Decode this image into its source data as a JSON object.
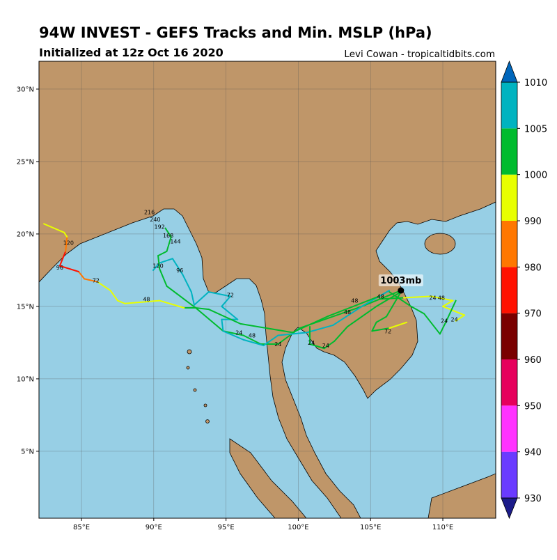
{
  "title": "94W INVEST - GEFS Tracks and Min. MSLP (hPa)",
  "subtitle": "Initialized at 12z Oct 16 2020",
  "credit": "Levi Cowan - tropicaltidbits.com",
  "map": {
    "lonlim": [
      82.06,
      113.66
    ],
    "latlim": [
      0.38,
      31.92
    ],
    "grid": true,
    "xticks": [
      {
        "value": 85,
        "label": "85°E"
      },
      {
        "value": 90,
        "label": "90°E"
      },
      {
        "value": 95,
        "label": "95°E"
      },
      {
        "value": 100,
        "label": "100°E"
      },
      {
        "value": 105,
        "label": "105°E"
      },
      {
        "value": 110,
        "label": "110°E"
      }
    ],
    "yticks": [
      {
        "value": 5,
        "label": "5°N"
      },
      {
        "value": 10,
        "label": "10°N"
      },
      {
        "value": 15,
        "label": "15°N"
      },
      {
        "value": 20,
        "label": "20°N"
      },
      {
        "value": 25,
        "label": "25°N"
      },
      {
        "value": 30,
        "label": "30°N"
      }
    ]
  },
  "colorbar": {
    "ticks": [
      930,
      940,
      950,
      960,
      970,
      980,
      990,
      1000,
      1005,
      1010
    ],
    "colors": [
      "#6a3bff",
      "#ff33ff",
      "#e6005c",
      "#7a0000",
      "#ff1100",
      "#ff7700",
      "#e8ff00",
      "#00bb2e",
      "#00b3c0"
    ],
    "under": "#1c1c8a",
    "over": "#0066bb"
  },
  "storm": {
    "lon": 107.1,
    "lat": 16.1,
    "label": "1003mb"
  },
  "tracks": [
    {
      "lon": [
        107.1,
        104.4,
        100.1,
        98.6,
        97.4,
        96.2,
        94.8,
        92.9,
        92.1,
        90.4,
        88.0,
        87.5,
        87.0,
        86.1,
        85.2,
        84.8,
        83.5,
        83.9,
        84.0,
        83.8,
        82.4
      ],
      "lat": [
        16.1,
        15.0,
        13.5,
        12.4,
        12.4,
        13.0,
        13.3,
        14.9,
        14.9,
        15.4,
        15.2,
        15.4,
        16.1,
        16.7,
        16.9,
        17.4,
        17.8,
        18.8,
        19.8,
        20.1,
        20.7
      ],
      "mslp": [
        1003,
        1002,
        1001,
        1001,
        1001,
        1002,
        1002,
        1001,
        998,
        997,
        996,
        996,
        994,
        988,
        985,
        978,
        976,
        985,
        993,
        996,
        997
      ]
    },
    {
      "lon": [
        106.3,
        104.4,
        102.4,
        100.6,
        98.6,
        97.6,
        96.2,
        94.8,
        94.7,
        95.8,
        94.7,
        95.3,
        93.8,
        92.8,
        92.6,
        92.0,
        91.3,
        90.4,
        89.96
      ],
      "lat": [
        16.1,
        15.0,
        13.7,
        13.2,
        13.0,
        12.3,
        12.7,
        13.3,
        14.1,
        14.1,
        15.0,
        15.7,
        16.0,
        15.1,
        16.0,
        17.2,
        18.3,
        18.0,
        17.5
      ],
      "mslp": [
        1006,
        1006,
        1007,
        1007,
        1007,
        1007,
        1007,
        1007,
        1007,
        1007,
        1007,
        1007,
        1007,
        1007,
        1007,
        1007,
        1007,
        1007,
        1007
      ]
    },
    {
      "lon": [
        105.6,
        102.0,
        99.6,
        96.0,
        93.8,
        92.9,
        92.1,
        90.9,
        90.4,
        90.3,
        90.9,
        91.2,
        90.8
      ],
      "lat": [
        15.7,
        14.3,
        13.2,
        13.8,
        14.8,
        14.9,
        15.5,
        16.4,
        17.6,
        18.5,
        18.8,
        19.8,
        20.4
      ],
      "mslp": [
        1003,
        1002,
        1002,
        1001,
        1001,
        1002,
        1003,
        1004,
        1004,
        1004,
        1004,
        1003,
        1004
      ]
    },
    {
      "lon": [
        105.6,
        107.3,
        109.2,
        110.7,
        110.0,
        111.5,
        110.9
      ],
      "lat": [
        15.5,
        15.6,
        15.7,
        15.4,
        15.0,
        14.4,
        14.0
      ],
      "mslp": [
        1003,
        999,
        997,
        996,
        997,
        996,
        997
      ]
    },
    {
      "lon": [
        106.3,
        107.8,
        108.7,
        109.8,
        110.2,
        110.9
      ],
      "lat": [
        16.0,
        15.0,
        14.5,
        13.1,
        13.9,
        15.4
      ],
      "mslp": [
        1003,
        1002,
        1002,
        1003,
        1003,
        1004
      ]
    },
    {
      "lon": [
        107.1,
        105.4,
        103.4,
        102.5,
        101.8,
        100.8,
        100.8
      ],
      "lat": [
        16.0,
        15.0,
        13.6,
        12.6,
        12.1,
        12.4,
        13.6
      ],
      "mslp": [
        1002,
        1001,
        1001,
        1001,
        1002,
        1002,
        1002
      ]
    },
    {
      "lon": [
        107.1,
        106.1,
        105.4,
        105.1,
        106.3,
        107.5
      ],
      "lat": [
        16.0,
        14.3,
        13.9,
        13.3,
        13.5,
        13.9
      ],
      "mslp": [
        1002,
        1001,
        1001,
        1000,
        997,
        996
      ]
    }
  ],
  "hour_labels": [
    {
      "text": "216",
      "lon": 89.7,
      "lat": 21.5
    },
    {
      "text": "240",
      "lon": 90.1,
      "lat": 21.0
    },
    {
      "text": "192",
      "lon": 90.4,
      "lat": 20.5
    },
    {
      "text": "168",
      "lon": 91.0,
      "lat": 19.9
    },
    {
      "text": "144",
      "lon": 91.5,
      "lat": 19.5
    },
    {
      "text": "120",
      "lon": 90.3,
      "lat": 17.8
    },
    {
      "text": "96",
      "lon": 91.8,
      "lat": 17.5
    },
    {
      "text": "72",
      "lon": 95.3,
      "lat": 15.8
    },
    {
      "text": "48",
      "lon": 96.8,
      "lat": 13.0
    },
    {
      "text": "24",
      "lon": 95.9,
      "lat": 13.2
    },
    {
      "text": "24",
      "lon": 98.6,
      "lat": 12.4
    },
    {
      "text": "48",
      "lon": 89.5,
      "lat": 15.5
    },
    {
      "text": "72",
      "lon": 86.0,
      "lat": 16.8
    },
    {
      "text": "96",
      "lon": 83.5,
      "lat": 17.7
    },
    {
      "text": "120",
      "lon": 84.1,
      "lat": 19.4
    },
    {
      "text": "48",
      "lon": 103.9,
      "lat": 15.4
    },
    {
      "text": "48",
      "lon": 105.7,
      "lat": 15.7
    },
    {
      "text": "48",
      "lon": 103.4,
      "lat": 14.6
    },
    {
      "text": "24",
      "lon": 109.3,
      "lat": 15.6
    },
    {
      "text": "48",
      "lon": 109.9,
      "lat": 15.6
    },
    {
      "text": "24",
      "lon": 110.1,
      "lat": 14.0
    },
    {
      "text": "24",
      "lon": 110.8,
      "lat": 14.1
    },
    {
      "text": "72",
      "lon": 106.2,
      "lat": 13.3
    },
    {
      "text": "24",
      "lon": 100.9,
      "lat": 12.5
    },
    {
      "text": "24",
      "lon": 101.9,
      "lat": 12.3
    }
  ]
}
